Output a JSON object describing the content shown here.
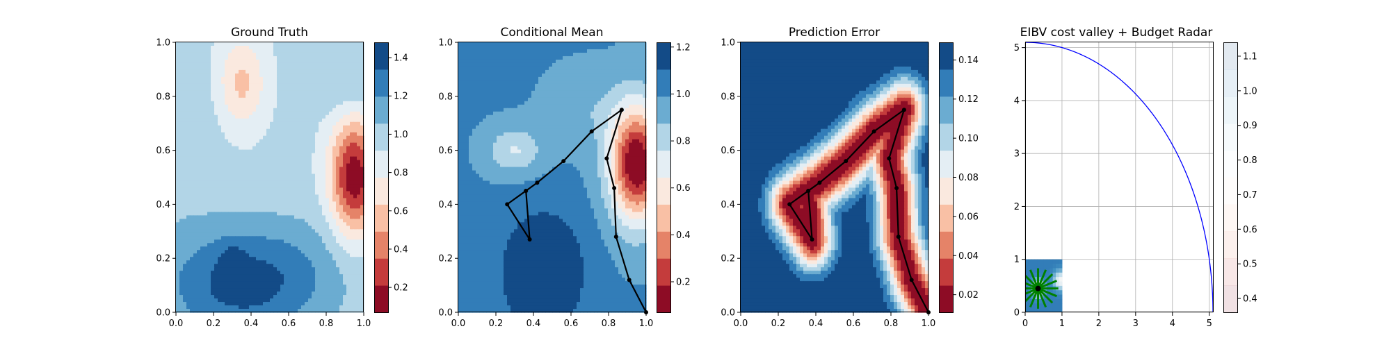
{
  "chart_data": [
    {
      "type": "contourf",
      "title": "Ground Truth",
      "xlabel": "",
      "ylabel": "",
      "xlim": [
        0,
        1
      ],
      "ylim": [
        0,
        1
      ],
      "xticks": [
        "0.0",
        "0.2",
        "0.4",
        "0.6",
        "0.8",
        "1.0"
      ],
      "yticks": [
        "0.0",
        "0.2",
        "0.4",
        "0.6",
        "0.8",
        "1.0"
      ],
      "colormap": "RdBu",
      "colorbar_ticks": [
        "0.2",
        "0.4",
        "0.6",
        "0.8",
        "1.0",
        "1.2",
        "1.4"
      ],
      "colorbar_range": [
        0.07,
        1.48
      ],
      "field": {
        "base": 0.95,
        "blobs": [
          {
            "x": 0.95,
            "y": 0.5,
            "sx": 0.09,
            "sy": 0.15,
            "a": -0.85
          },
          {
            "x": 0.35,
            "y": 0.85,
            "sx": 0.09,
            "sy": 0.12,
            "a": -0.35
          },
          {
            "x": 0.95,
            "y": 0.85,
            "sx": 0.15,
            "sy": 0.08,
            "a": 0.15
          },
          {
            "x": 0.3,
            "y": 0.1,
            "sx": 0.28,
            "sy": 0.15,
            "a": 0.4
          },
          {
            "x": 0.3,
            "y": 0.2,
            "sx": 0.05,
            "sy": 0.05,
            "a": 0.12
          },
          {
            "x": 0.65,
            "y": 0.15,
            "sx": 0.25,
            "sy": 0.15,
            "a": 0.15
          },
          {
            "x": 0.0,
            "y": 0.62,
            "sx": 0.15,
            "sy": 0.2,
            "a": 0.1
          }
        ]
      },
      "path": []
    },
    {
      "type": "contourf",
      "title": "Conditional Mean",
      "xlabel": "",
      "ylabel": "",
      "xlim": [
        0,
        1
      ],
      "ylim": [
        0,
        1
      ],
      "xticks": [
        "0.0",
        "0.2",
        "0.4",
        "0.6",
        "0.8",
        "1.0"
      ],
      "yticks": [
        "0.0",
        "0.2",
        "0.4",
        "0.6",
        "0.8",
        "1.0"
      ],
      "colormap": "RdBu",
      "colorbar_ticks": [
        "0.2",
        "0.4",
        "0.6",
        "0.8",
        "1.0",
        "1.2"
      ],
      "colorbar_range": [
        0.07,
        1.22
      ],
      "field": {
        "base": 1.0,
        "blobs": [
          {
            "x": 0.95,
            "y": 0.55,
            "sx": 0.1,
            "sy": 0.15,
            "a": -0.95
          },
          {
            "x": 0.45,
            "y": 0.15,
            "sx": 0.15,
            "sy": 0.15,
            "a": 0.3
          },
          {
            "x": 0.3,
            "y": 0.6,
            "sx": 0.1,
            "sy": 0.06,
            "a": -0.25
          },
          {
            "x": 0.7,
            "y": 0.75,
            "sx": 0.15,
            "sy": 0.1,
            "a": -0.1
          }
        ]
      },
      "path": [
        [
          1.0,
          0.0
        ],
        [
          0.91,
          0.12
        ],
        [
          0.84,
          0.28
        ],
        [
          0.83,
          0.46
        ],
        [
          0.79,
          0.57
        ],
        [
          0.87,
          0.75
        ],
        [
          0.71,
          0.67
        ],
        [
          0.56,
          0.56
        ],
        [
          0.42,
          0.48
        ],
        [
          0.36,
          0.45
        ],
        [
          0.38,
          0.27
        ],
        [
          0.26,
          0.4
        ],
        [
          0.36,
          0.45
        ]
      ]
    },
    {
      "type": "contourf",
      "title": "Prediction Error",
      "xlabel": "",
      "ylabel": "",
      "xlim": [
        0,
        1
      ],
      "ylim": [
        0,
        1
      ],
      "xticks": [
        "0.0",
        "0.2",
        "0.4",
        "0.6",
        "0.8",
        "1.0"
      ],
      "yticks": [
        "0.0",
        "0.2",
        "0.4",
        "0.6",
        "0.8",
        "1.0"
      ],
      "colormap": "RdBu",
      "colorbar_ticks": [
        "0.02",
        "0.04",
        "0.06",
        "0.08",
        "0.10",
        "0.12",
        "0.14"
      ],
      "colorbar_range": [
        0.011,
        0.149
      ],
      "field": {
        "base": 0.149,
        "path_error": {
          "min": 0.012,
          "sigma": 0.075
        }
      },
      "path": [
        [
          1.0,
          0.0
        ],
        [
          0.91,
          0.12
        ],
        [
          0.84,
          0.28
        ],
        [
          0.83,
          0.46
        ],
        [
          0.79,
          0.57
        ],
        [
          0.87,
          0.75
        ],
        [
          0.71,
          0.67
        ],
        [
          0.56,
          0.56
        ],
        [
          0.42,
          0.48
        ],
        [
          0.36,
          0.45
        ],
        [
          0.38,
          0.27
        ],
        [
          0.26,
          0.4
        ],
        [
          0.36,
          0.45
        ]
      ]
    },
    {
      "type": "line",
      "title": "EIBV cost valley + Budget Radar",
      "xlabel": "",
      "ylabel": "",
      "xlim": [
        0,
        5.1
      ],
      "ylim": [
        0,
        5.1
      ],
      "xticks": [
        0,
        1,
        2,
        3,
        4,
        5
      ],
      "yticks": [
        0,
        1,
        2,
        3,
        4,
        5
      ],
      "grid": true,
      "colormap": "RdBu",
      "colorbar_ticks": [
        "0.4",
        "0.5",
        "0.6",
        "0.7",
        "0.8",
        "0.9",
        "1.0",
        "1.1"
      ],
      "colorbar_range": [
        0.36,
        1.14
      ],
      "colorbar_faded": true,
      "budget_radar": {
        "center": [
          0,
          0
        ],
        "radius": 5.1,
        "color": "#0000ff"
      },
      "cost_valley_extent": [
        0,
        1,
        0,
        1
      ],
      "candidate_lines": {
        "center": [
          0.35,
          0.45
        ],
        "color": "#008000",
        "count": 16,
        "length": 0.55
      },
      "current_location": [
        0.35,
        0.45
      ]
    }
  ]
}
